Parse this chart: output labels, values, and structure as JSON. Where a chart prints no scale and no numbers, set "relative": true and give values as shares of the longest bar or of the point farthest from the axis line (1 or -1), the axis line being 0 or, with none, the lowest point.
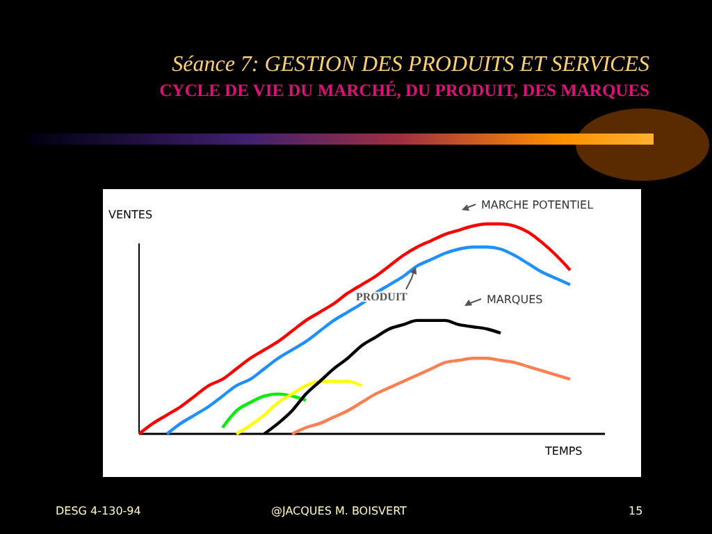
{
  "chart_data": {
    "type": "line",
    "relative": true,
    "title": "Séance 7: GESTION DES PRODUITS ET SERVICES",
    "subtitle": "CYCLE DE VIE DU MARCHÉ, DU PRODUIT, DES MARQUES",
    "xlabel": "TEMPS",
    "ylabel": "VENTES",
    "annotations": [
      "MARCHE POTENTIEL",
      "PRODUIT",
      "MARQUES",
      "DESG 4-130-94",
      "@JACQUES M. BOISVERT",
      "15"
    ],
    "categories": [
      null,
      null,
      null,
      null,
      null,
      null,
      null,
      null,
      null,
      null,
      null,
      null,
      null,
      null,
      null,
      null,
      null,
      null,
      null,
      null,
      null,
      null,
      null,
      null,
      null,
      null,
      null,
      null,
      null,
      null,
      null,
      null
    ],
    "marker": "none",
    "line_style": "solid",
    "series": [
      {
        "color": "#ff0000",
        "values": [
          0,
          0.05,
          0.09,
          0.13,
          0.18,
          0.23,
          0.26,
          0.31,
          0.36,
          0.4,
          0.44,
          0.49,
          0.54,
          0.58,
          0.62,
          0.67,
          0.71,
          0.75,
          0.8,
          0.85,
          0.89,
          0.92,
          0.95,
          0.97,
          0.99,
          1,
          1,
          0.99,
          0.96,
          0.91,
          0.85,
          0.78
        ]
      },
      {
        "color": "#1e90ff",
        "values": [
          null,
          null,
          0,
          0.05,
          0.09,
          0.13,
          0.18,
          0.23,
          0.26,
          0.31,
          0.36,
          0.4,
          0.44,
          0.49,
          0.54,
          0.58,
          0.62,
          0.67,
          0.71,
          0.75,
          0.8,
          0.83,
          0.86,
          0.88,
          0.89,
          0.89,
          0.88,
          0.85,
          0.81,
          0.77,
          0.74,
          0.71
        ]
      },
      {
        "color": "#00ee00",
        "values": [
          null,
          null,
          null,
          null,
          null,
          null,
          0.03,
          0.11,
          0.15,
          0.18,
          0.19,
          0.18,
          0.16,
          null,
          null,
          null,
          null,
          null,
          null,
          null,
          null,
          null,
          null,
          null,
          null,
          null,
          null,
          null,
          null,
          null,
          null,
          null
        ]
      },
      {
        "color": "#ffff00",
        "values": [
          null,
          null,
          null,
          null,
          null,
          null,
          null,
          0,
          0.04,
          0.09,
          0.15,
          0.19,
          0.23,
          0.25,
          0.25,
          0.25,
          0.23,
          null,
          null,
          null,
          null,
          null,
          null,
          null,
          null,
          null,
          null,
          null,
          null,
          null,
          null,
          null
        ]
      },
      {
        "color": "#000000",
        "values": [
          null,
          null,
          null,
          null,
          null,
          null,
          null,
          null,
          null,
          0,
          0.05,
          0.11,
          0.19,
          0.25,
          0.31,
          0.36,
          0.42,
          0.46,
          0.5,
          0.52,
          0.54,
          0.54,
          0.54,
          0.52,
          0.51,
          0.5,
          0.48,
          null,
          null,
          null,
          null,
          null
        ]
      },
      {
        "color": "#ff7f50",
        "values": [
          null,
          null,
          null,
          null,
          null,
          null,
          null,
          null,
          null,
          null,
          null,
          0,
          0.03,
          0.05,
          0.08,
          0.11,
          0.15,
          0.19,
          0.22,
          0.25,
          0.28,
          0.31,
          0.34,
          0.35,
          0.36,
          0.36,
          0.35,
          0.34,
          0.32,
          0.3,
          0.28,
          0.26
        ]
      }
    ]
  }
}
